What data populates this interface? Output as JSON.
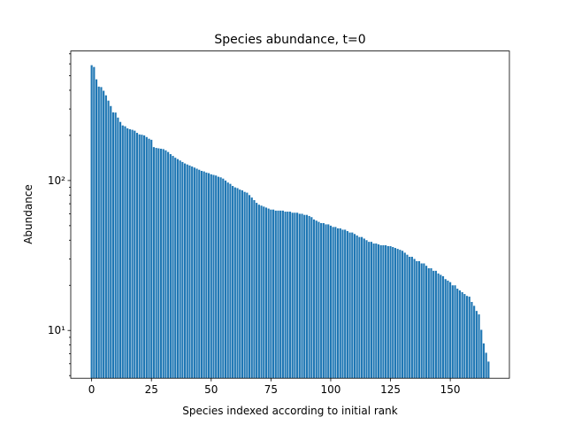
{
  "chart_data": {
    "type": "bar",
    "title": "Species abundance, t=0",
    "xlabel": "Species indexed according to initial rank",
    "ylabel": "Abundance",
    "color": "#1f77b4",
    "yscale": "log",
    "xlim": [
      -8.74,
      174.74
    ],
    "xticks": [
      0,
      25,
      50,
      75,
      100,
      125,
      150
    ],
    "ylim": [
      4.8,
      731
    ],
    "yticks": [
      {
        "value": 10,
        "label": "10¹"
      },
      {
        "value": 100,
        "label": "10²"
      }
    ],
    "yminorticks": [
      5,
      6,
      7,
      8,
      9,
      20,
      30,
      40,
      50,
      60,
      70,
      80,
      90,
      200,
      300,
      400,
      500,
      600,
      700
    ],
    "x": [
      0,
      1,
      2,
      3,
      4,
      5,
      6,
      7,
      8,
      9,
      10,
      11,
      12,
      13,
      14,
      15,
      16,
      17,
      18,
      19,
      20,
      21,
      22,
      23,
      24,
      25,
      26,
      27,
      28,
      29,
      30,
      31,
      32,
      33,
      34,
      35,
      36,
      37,
      38,
      39,
      40,
      41,
      42,
      43,
      44,
      45,
      46,
      47,
      48,
      49,
      50,
      51,
      52,
      53,
      54,
      55,
      56,
      57,
      58,
      59,
      60,
      61,
      62,
      63,
      64,
      65,
      66,
      67,
      68,
      69,
      70,
      71,
      72,
      73,
      74,
      75,
      76,
      77,
      78,
      79,
      80,
      81,
      82,
      83,
      84,
      85,
      86,
      87,
      88,
      89,
      90,
      91,
      92,
      93,
      94,
      95,
      96,
      97,
      98,
      99,
      100,
      101,
      102,
      103,
      104,
      105,
      106,
      107,
      108,
      109,
      110,
      111,
      112,
      113,
      114,
      115,
      116,
      117,
      118,
      119,
      120,
      121,
      122,
      123,
      124,
      125,
      126,
      127,
      128,
      129,
      130,
      131,
      132,
      133,
      134,
      135,
      136,
      137,
      138,
      139,
      140,
      141,
      142,
      143,
      144,
      145,
      146,
      147,
      148,
      149,
      150,
      151,
      152,
      153,
      154,
      155,
      156,
      157,
      158,
      159,
      160,
      161,
      162,
      163,
      164,
      165,
      166
    ],
    "values": [
      588,
      572,
      473,
      423,
      420,
      397,
      370,
      341,
      314,
      285,
      284,
      263,
      246,
      233,
      230,
      223,
      220,
      218,
      215,
      208,
      203,
      202,
      200,
      195,
      190,
      187,
      167,
      165,
      164,
      163,
      162,
      159,
      155,
      150,
      146,
      142,
      139,
      136,
      133,
      130,
      128,
      126,
      124,
      122,
      120,
      118,
      116,
      115,
      113,
      112,
      110,
      109,
      108,
      106,
      105,
      103,
      100,
      97,
      95,
      92,
      90,
      89,
      87,
      86,
      84,
      83,
      80,
      77,
      74,
      71,
      69,
      68,
      67,
      66,
      65,
      64,
      64,
      63,
      63,
      63,
      63,
      62,
      62,
      62,
      61,
      61,
      61,
      60,
      60,
      59,
      59,
      58,
      57,
      55,
      54,
      53,
      52,
      52,
      51,
      51,
      50,
      49,
      49,
      48,
      48,
      47,
      47,
      46,
      45,
      45,
      44,
      43,
      42,
      42,
      41,
      40,
      39,
      39,
      38,
      38,
      37.5,
      37,
      37,
      37,
      36.5,
      36.5,
      36,
      35.5,
      35,
      34.5,
      34,
      33,
      32,
      31,
      31,
      30,
      29,
      29,
      28,
      28,
      27,
      26,
      26,
      25,
      25,
      24,
      23.5,
      23,
      22,
      21.5,
      21,
      20,
      20,
      19,
      18.5,
      18,
      17.5,
      17,
      16.8,
      15.5,
      14.6,
      13.5,
      12.8,
      10.1,
      8.2,
      7.1,
      6.2
    ]
  }
}
